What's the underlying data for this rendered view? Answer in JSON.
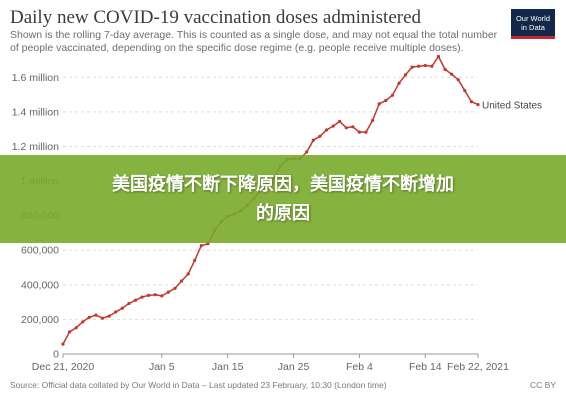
{
  "chart_data": {
    "type": "line",
    "title": "Daily new COVID-19 vaccination doses administered",
    "subtitle": "Shown is the rolling 7-day average. This is counted as a single dose, and may not equal the total number of people vaccinated, depending on the specific dose regime (e.g. people receive multiple doses).",
    "y_ticks": [
      {
        "value": 0,
        "label": "0"
      },
      {
        "value": 200000,
        "label": "200,000"
      },
      {
        "value": 400000,
        "label": "400,000"
      },
      {
        "value": 600000,
        "label": "600,000"
      },
      {
        "value": 800000,
        "label": "800,000"
      },
      {
        "value": 1000000,
        "label": "1 million"
      },
      {
        "value": 1200000,
        "label": "1.2 million"
      },
      {
        "value": 1400000,
        "label": "1.4 million"
      },
      {
        "value": 1600000,
        "label": "1.6 million"
      }
    ],
    "x_ticks": [
      {
        "date": "2020-12-21",
        "label": "Dec 21, 2020"
      },
      {
        "date": "2021-01-05",
        "label": "Jan 5"
      },
      {
        "date": "2021-01-15",
        "label": "Jan 15"
      },
      {
        "date": "2021-01-25",
        "label": "Jan 25"
      },
      {
        "date": "2021-02-04",
        "label": "Feb 4"
      },
      {
        "date": "2021-02-14",
        "label": "Feb 14"
      },
      {
        "date": "2021-02-22",
        "label": "Feb 22, 2021"
      }
    ],
    "xlim": [
      "2020-12-21",
      "2021-02-22"
    ],
    "ylim": [
      0,
      1700000
    ],
    "grid": "horizontal dashed",
    "series": [
      {
        "name": "United States",
        "color": "#c0392b",
        "points": [
          {
            "date": "2020-12-21",
            "value": 57000
          },
          {
            "date": "2020-12-22",
            "value": 128000
          },
          {
            "date": "2020-12-23",
            "value": 152000
          },
          {
            "date": "2020-12-24",
            "value": 186000
          },
          {
            "date": "2020-12-25",
            "value": 212000
          },
          {
            "date": "2020-12-26",
            "value": 225000
          },
          {
            "date": "2020-12-27",
            "value": 207000
          },
          {
            "date": "2020-12-28",
            "value": 219000
          },
          {
            "date": "2020-12-29",
            "value": 243000
          },
          {
            "date": "2020-12-30",
            "value": 265000
          },
          {
            "date": "2020-12-31",
            "value": 292000
          },
          {
            "date": "2021-01-01",
            "value": 311000
          },
          {
            "date": "2021-01-02",
            "value": 329000
          },
          {
            "date": "2021-01-03",
            "value": 339000
          },
          {
            "date": "2021-01-04",
            "value": 343000
          },
          {
            "date": "2021-01-05",
            "value": 336000
          },
          {
            "date": "2021-01-06",
            "value": 358000
          },
          {
            "date": "2021-01-07",
            "value": 380000
          },
          {
            "date": "2021-01-08",
            "value": 422000
          },
          {
            "date": "2021-01-09",
            "value": 463000
          },
          {
            "date": "2021-01-10",
            "value": 541000
          },
          {
            "date": "2021-01-11",
            "value": 627000
          },
          {
            "date": "2021-01-12",
            "value": 637000
          },
          {
            "date": "2021-01-13",
            "value": 714000
          },
          {
            "date": "2021-01-14",
            "value": 765000
          },
          {
            "date": "2021-01-15",
            "value": 796000
          },
          {
            "date": "2021-01-16",
            "value": 810000
          },
          {
            "date": "2021-01-17",
            "value": 828000
          },
          {
            "date": "2021-01-18",
            "value": 860000
          },
          {
            "date": "2021-01-19",
            "value": 900000
          },
          {
            "date": "2021-01-20",
            "value": 946000
          },
          {
            "date": "2021-01-21",
            "value": 985000
          },
          {
            "date": "2021-01-22",
            "value": 1012000
          },
          {
            "date": "2021-01-23",
            "value": 1087000
          },
          {
            "date": "2021-01-24",
            "value": 1124000
          },
          {
            "date": "2021-01-25",
            "value": 1129000
          },
          {
            "date": "2021-01-26",
            "value": 1130000
          },
          {
            "date": "2021-01-27",
            "value": 1168000
          },
          {
            "date": "2021-01-28",
            "value": 1236000
          },
          {
            "date": "2021-01-29",
            "value": 1259000
          },
          {
            "date": "2021-01-30",
            "value": 1295000
          },
          {
            "date": "2021-01-31",
            "value": 1318000
          },
          {
            "date": "2021-02-01",
            "value": 1345000
          },
          {
            "date": "2021-02-02",
            "value": 1308000
          },
          {
            "date": "2021-02-03",
            "value": 1314000
          },
          {
            "date": "2021-02-04",
            "value": 1283000
          },
          {
            "date": "2021-02-05",
            "value": 1283000
          },
          {
            "date": "2021-02-06",
            "value": 1351000
          },
          {
            "date": "2021-02-07",
            "value": 1446000
          },
          {
            "date": "2021-02-08",
            "value": 1466000
          },
          {
            "date": "2021-02-09",
            "value": 1496000
          },
          {
            "date": "2021-02-10",
            "value": 1566000
          },
          {
            "date": "2021-02-11",
            "value": 1614000
          },
          {
            "date": "2021-02-12",
            "value": 1659000
          },
          {
            "date": "2021-02-13",
            "value": 1664000
          },
          {
            "date": "2021-02-14",
            "value": 1668000
          },
          {
            "date": "2021-02-15",
            "value": 1664000
          },
          {
            "date": "2021-02-16",
            "value": 1720000
          },
          {
            "date": "2021-02-17",
            "value": 1645000
          },
          {
            "date": "2021-02-18",
            "value": 1618000
          },
          {
            "date": "2021-02-19",
            "value": 1586000
          },
          {
            "date": "2021-02-20",
            "value": 1523000
          },
          {
            "date": "2021-02-21",
            "value": 1459000
          },
          {
            "date": "2021-02-22",
            "value": 1442000
          }
        ]
      }
    ]
  },
  "logo": {
    "line1": "Our World",
    "line2": "in Data"
  },
  "footer": {
    "source": "Source: Official data collated by Our World in Data – Last updated 23 February, 10:30 (London time)",
    "license": "CC BY"
  },
  "banner": {
    "line1": "美国疫情不断下降原因，美国疫情不断增加",
    "line2": "的原因"
  }
}
